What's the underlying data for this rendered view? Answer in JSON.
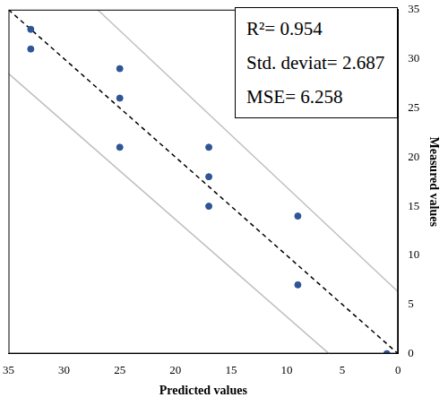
{
  "chart_data": {
    "type": "scatter",
    "x_label": "Predicted values",
    "y_label": "Measured values",
    "annotations": [
      "R²= 0.954",
      "Std. deviat= 2.687",
      "MSE= 6.258"
    ],
    "xlim": [
      35,
      0
    ],
    "xticks": [
      35,
      30,
      25,
      20,
      15,
      10,
      5,
      0
    ],
    "ylim": [
      0,
      35
    ],
    "yticks": [
      0,
      5,
      10,
      15,
      20,
      25,
      30,
      35
    ],
    "grid": false,
    "series": [
      {
        "type": "line",
        "color": "#bfbfbf",
        "line_style": "solid",
        "x": [
          27,
          0
        ],
        "values": [
          35,
          6.3
        ]
      },
      {
        "type": "line",
        "color": "#bfbfbf",
        "line_style": "solid",
        "x": [
          35,
          6.2
        ],
        "values": [
          28.5,
          0
        ]
      },
      {
        "type": "line",
        "color": "#000000",
        "line_style": "dashed",
        "x": [
          35,
          0
        ],
        "values": [
          35,
          0
        ]
      },
      {
        "type": "scatter",
        "color": "#2f5597",
        "marker": "circle",
        "x": [
          33,
          33,
          25,
          25,
          25,
          17,
          17,
          17,
          9,
          9,
          1
        ],
        "values": [
          33,
          31,
          29,
          26,
          21,
          21,
          18,
          15,
          14,
          7,
          0
        ]
      }
    ]
  }
}
